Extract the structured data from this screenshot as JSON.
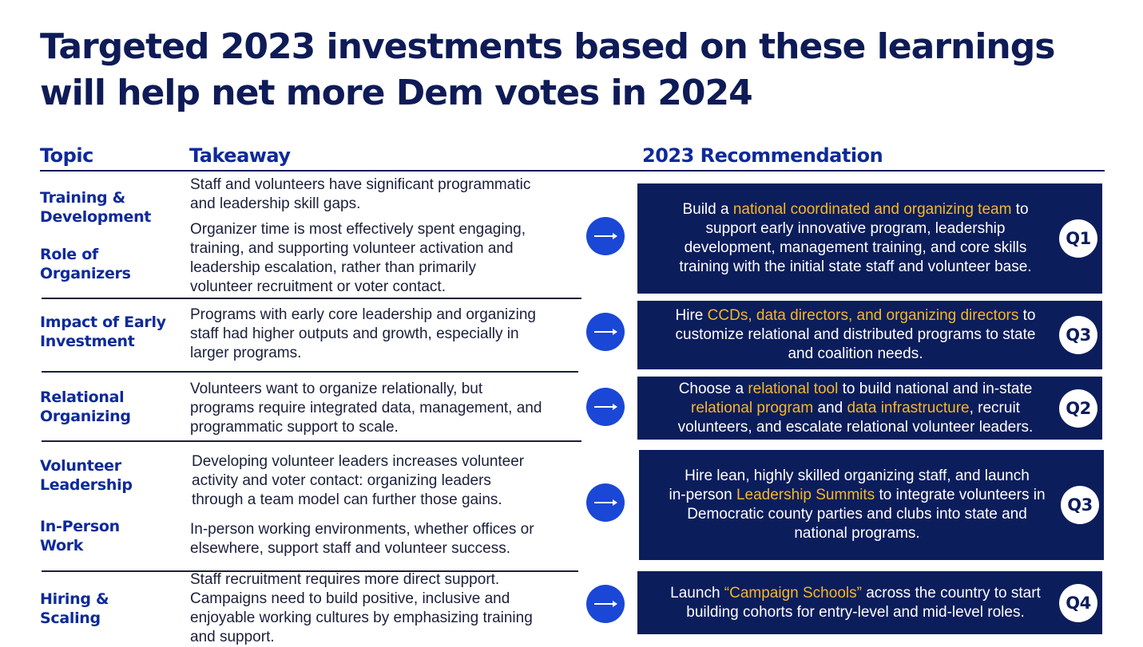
{
  "title": {
    "line1": "Targeted 2023 investments based on these learnings",
    "line2": "will help net more Dem votes in 2024"
  },
  "headers": {
    "topic": "Topic",
    "takeaway": "Takeaway",
    "recommendation": "2023 Recommendation"
  },
  "topics": [
    {
      "line1": "Training &",
      "line2": "Development"
    },
    {
      "line1": "Role of",
      "line2": "Organizers"
    },
    {
      "line1": "Impact of Early",
      "line2": "Investment"
    },
    {
      "line1": "Relational",
      "line2": "Organizing"
    },
    {
      "line1": "Volunteer",
      "line2": "Leadership"
    },
    {
      "line1": "In-Person",
      "line2": "Work"
    },
    {
      "line1": "Hiring &",
      "line2": "Scaling"
    }
  ],
  "takeaways": [
    [
      "Staff and volunteers have significant programmatic",
      "and leadership skill gaps."
    ],
    [
      "Organizer time is most effectively spent engaging,",
      "training, and supporting volunteer activation and",
      "leadership escalation, rather than primarily",
      "volunteer recruitment or voter contact."
    ],
    [
      "Programs with early core leadership and organizing",
      "staff had higher outputs and growth, especially in",
      "larger programs."
    ],
    [
      "Volunteers want to organize relationally, but",
      "programs require integrated data, management, and",
      "programmatic support to scale."
    ],
    [
      "Developing volunteer leaders increases volunteer",
      "activity and voter contact: organizing leaders",
      "through a team model can further those gains."
    ],
    [
      "In-person working environments, whether offices or",
      "elsewhere, support staff and volunteer success."
    ],
    [
      "Staff recruitment requires more direct support.",
      "Campaigns need to build positive, inclusive and",
      "enjoyable working cultures by emphasizing training",
      "and support."
    ]
  ],
  "recommendations": [
    {
      "lines": [
        [
          {
            "t": "Build a "
          },
          {
            "t": "national coordinated and organizing team",
            "hl": true
          },
          {
            "t": " to"
          }
        ],
        [
          {
            "t": "support early innovative program, leadership"
          }
        ],
        [
          {
            "t": "development, management training, and core skills"
          }
        ],
        [
          {
            "t": "training with the initial state staff and volunteer base."
          }
        ]
      ],
      "quarter": "Q1"
    },
    {
      "lines": [
        [
          {
            "t": "Hire "
          },
          {
            "t": "CCDs, data directors, and organizing directors",
            "hl": true
          },
          {
            "t": " to"
          }
        ],
        [
          {
            "t": "customize relational and distributed programs to state"
          }
        ],
        [
          {
            "t": "and coalition needs."
          }
        ]
      ],
      "quarter": "Q3"
    },
    {
      "lines": [
        [
          {
            "t": "Choose a "
          },
          {
            "t": "relational tool",
            "hl": true
          },
          {
            "t": " to build national and in-state"
          }
        ],
        [
          {
            "t": "relational program",
            "hl": true
          },
          {
            "t": " and "
          },
          {
            "t": "data infrastructure",
            "hl": true
          },
          {
            "t": ", recruit"
          }
        ],
        [
          {
            "t": "volunteers, and escalate relational volunteer leaders."
          }
        ]
      ],
      "quarter": "Q2"
    },
    {
      "lines": [
        [
          {
            "t": "Hire lean, highly skilled organizing staff, and launch"
          }
        ],
        [
          {
            "t": "in-person "
          },
          {
            "t": "Leadership Summits",
            "hl": true
          },
          {
            "t": " to integrate volunteers in"
          }
        ],
        [
          {
            "t": "Democratic county parties and clubs into state and"
          }
        ],
        [
          {
            "t": "national programs."
          }
        ]
      ],
      "quarter": "Q3"
    },
    {
      "lines": [
        [
          {
            "t": "Launch "
          },
          {
            "t": "“Campaign Schools”",
            "hl": true
          },
          {
            "t": " across the country to start"
          }
        ],
        [
          {
            "t": "building cohorts for entry-level and mid-level roles."
          }
        ]
      ],
      "quarter": "Q4"
    }
  ],
  "colors": {
    "title": "#0e1b57",
    "heading_blue": "#0e2a9a",
    "panel_navy": "#0c1d5c",
    "arrow_blue": "#1a47d6",
    "highlight_gold": "#f5b728"
  },
  "icons": {
    "arrow": "arrow-right-icon"
  }
}
